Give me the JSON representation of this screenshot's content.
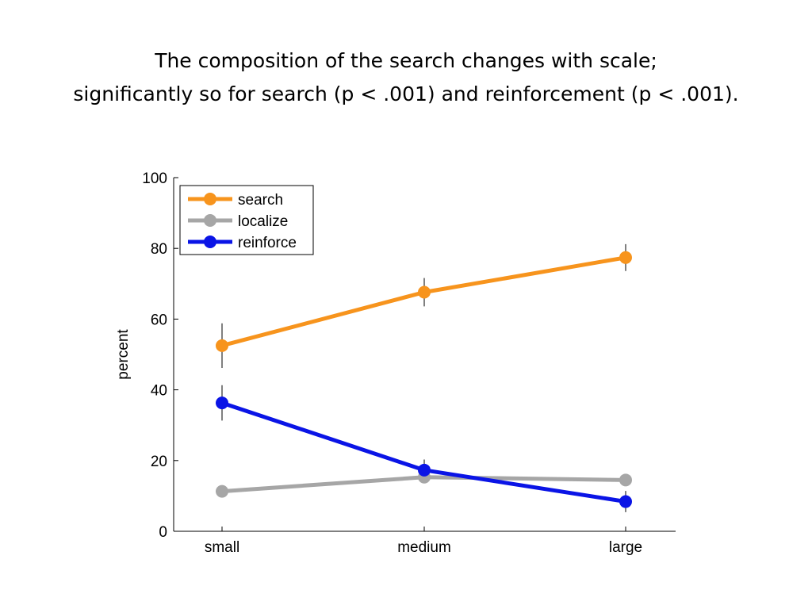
{
  "slide": {
    "title_line1": "The composition of the search changes with scale;",
    "title_line2": "significantly so for search (p < .001) and reinforcement (p < .001)."
  },
  "chart_data": {
    "type": "line",
    "title": "",
    "xlabel": "",
    "ylabel": "percent",
    "categories": [
      "small",
      "medium",
      "large"
    ],
    "ylim": [
      0,
      100
    ],
    "yticks": [
      0,
      20,
      40,
      60,
      80,
      100
    ],
    "legend_position": "top-left",
    "grid": false,
    "series": [
      {
        "name": "search",
        "color": "#F7941D",
        "values": [
          52.5,
          67.6,
          77.4
        ],
        "error": [
          6.3,
          4.0,
          3.8
        ]
      },
      {
        "name": "localize",
        "color": "#A6A6A6",
        "values": [
          11.3,
          15.3,
          14.5
        ],
        "error": [
          1.5,
          1.5,
          1.0
        ]
      },
      {
        "name": "reinforce",
        "color": "#0A14E6",
        "values": [
          36.3,
          17.3,
          8.4
        ],
        "error": [
          5.0,
          3.0,
          3.0
        ]
      }
    ]
  }
}
